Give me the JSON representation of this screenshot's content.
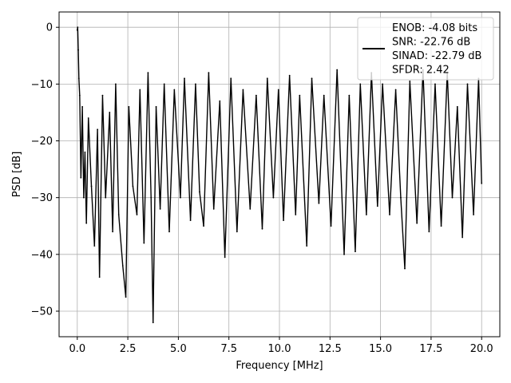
{
  "chart_data": {
    "type": "line",
    "title": "",
    "xlabel": "Frequency [MHz]",
    "ylabel": "PSD [dB]",
    "xlim": [
      -0.9,
      20.9
    ],
    "ylim": [
      -54.5,
      2.7
    ],
    "xticks": [
      0.0,
      2.5,
      5.0,
      7.5,
      10.0,
      12.5,
      15.0,
      17.5,
      20.0
    ],
    "xtick_labels": [
      "0.0",
      "2.5",
      "5.0",
      "7.5",
      "10.0",
      "12.5",
      "15.0",
      "17.5",
      "20.0"
    ],
    "yticks": [
      0,
      -10,
      -20,
      -30,
      -40,
      -50
    ],
    "ytick_labels": [
      "0",
      "−10",
      "−20",
      "−30",
      "−40",
      "−50"
    ],
    "grid": true,
    "legend_placement": "upper-right",
    "line_color": "#000000",
    "legend": {
      "lines": [
        "ENOB: -4.08 bits",
        "SNR: -22.76 dB",
        "SINAD: -22.79 dB",
        "SFDR: 2.42"
      ]
    },
    "series": [
      {
        "points": [
          [
            0.0,
            -0.5
          ],
          [
            0.02,
            0.0
          ],
          [
            0.05,
            -4.0
          ],
          [
            0.08,
            -9.0
          ],
          [
            0.12,
            -12.0
          ],
          [
            0.18,
            -26.5
          ],
          [
            0.25,
            -14.0
          ],
          [
            0.32,
            -30.0
          ],
          [
            0.38,
            -22.0
          ],
          [
            0.45,
            -34.5
          ],
          [
            0.55,
            -16.0
          ],
          [
            0.7,
            -28.0
          ],
          [
            0.85,
            -38.5
          ],
          [
            1.0,
            -18.0
          ],
          [
            1.1,
            -44.0
          ],
          [
            1.25,
            -12.0
          ],
          [
            1.4,
            -30.0
          ],
          [
            1.6,
            -15.0
          ],
          [
            1.75,
            -36.0
          ],
          [
            1.9,
            -10.0
          ],
          [
            2.05,
            -33.0
          ],
          [
            2.25,
            -42.0
          ],
          [
            2.4,
            -47.5
          ],
          [
            2.55,
            -14.0
          ],
          [
            2.75,
            -28.0
          ],
          [
            2.95,
            -33.0
          ],
          [
            3.1,
            -11.0
          ],
          [
            3.3,
            -38.0
          ],
          [
            3.5,
            -8.0
          ],
          [
            3.65,
            -30.0
          ],
          [
            3.75,
            -52.0
          ],
          [
            3.9,
            -14.0
          ],
          [
            4.1,
            -32.0
          ],
          [
            4.3,
            -10.0
          ],
          [
            4.55,
            -36.0
          ],
          [
            4.8,
            -11.0
          ],
          [
            5.1,
            -30.0
          ],
          [
            5.3,
            -9.0
          ],
          [
            5.6,
            -34.0
          ],
          [
            5.85,
            -10.0
          ],
          [
            6.05,
            -29.0
          ],
          [
            6.25,
            -35.0
          ],
          [
            6.5,
            -8.0
          ],
          [
            6.75,
            -32.0
          ],
          [
            7.05,
            -13.0
          ],
          [
            7.3,
            -40.5
          ],
          [
            7.6,
            -9.0
          ],
          [
            7.9,
            -36.0
          ],
          [
            8.2,
            -11.0
          ],
          [
            8.55,
            -32.0
          ],
          [
            8.85,
            -12.0
          ],
          [
            9.15,
            -35.5
          ],
          [
            9.4,
            -9.0
          ],
          [
            9.7,
            -30.0
          ],
          [
            9.95,
            -11.0
          ],
          [
            10.2,
            -34.0
          ],
          [
            10.5,
            -8.5
          ],
          [
            10.8,
            -33.0
          ],
          [
            11.0,
            -12.0
          ],
          [
            11.35,
            -38.5
          ],
          [
            11.6,
            -9.0
          ],
          [
            11.95,
            -31.0
          ],
          [
            12.2,
            -12.0
          ],
          [
            12.55,
            -35.0
          ],
          [
            12.85,
            -7.5
          ],
          [
            13.2,
            -40.0
          ],
          [
            13.45,
            -12.0
          ],
          [
            13.75,
            -39.5
          ],
          [
            14.0,
            -10.0
          ],
          [
            14.3,
            -33.0
          ],
          [
            14.55,
            -8.0
          ],
          [
            14.85,
            -31.5
          ],
          [
            15.1,
            -10.0
          ],
          [
            15.45,
            -33.0
          ],
          [
            15.75,
            -11.0
          ],
          [
            16.0,
            -30.0
          ],
          [
            16.2,
            -42.5
          ],
          [
            16.45,
            -9.5
          ],
          [
            16.8,
            -34.5
          ],
          [
            17.1,
            -7.5
          ],
          [
            17.4,
            -36.0
          ],
          [
            17.7,
            -10.0
          ],
          [
            18.0,
            -35.0
          ],
          [
            18.3,
            -8.0
          ],
          [
            18.55,
            -30.0
          ],
          [
            18.8,
            -14.0
          ],
          [
            19.05,
            -37.0
          ],
          [
            19.3,
            -10.0
          ],
          [
            19.6,
            -33.0
          ],
          [
            19.85,
            -9.0
          ],
          [
            20.0,
            -27.5
          ]
        ]
      }
    ]
  }
}
